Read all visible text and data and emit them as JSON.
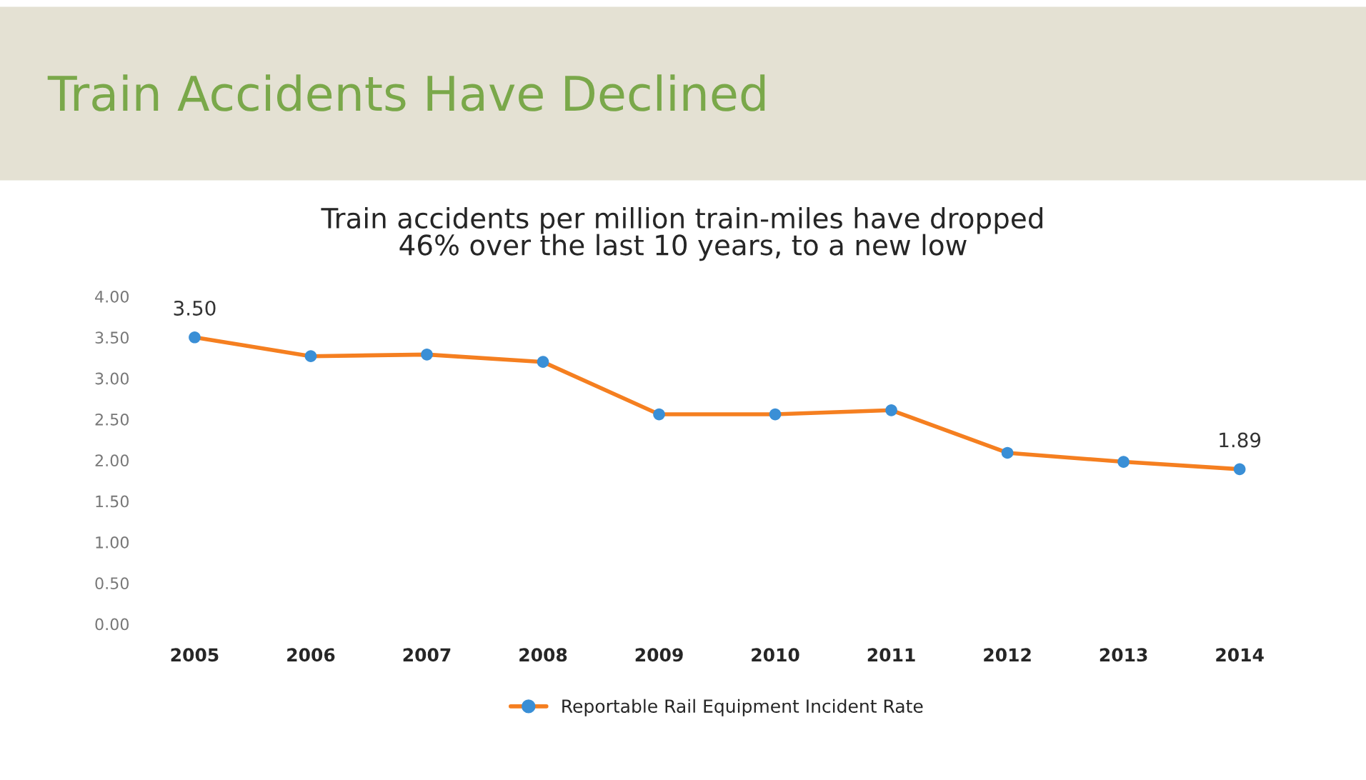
{
  "chart_data": {
    "type": "line",
    "title": "Train Accidents Have Declined",
    "subtitle": "Train accidents per million train-miles have dropped\n46% over the last 10 years, to a new low",
    "categories": [
      "2005",
      "2006",
      "2007",
      "2008",
      "2009",
      "2010",
      "2011",
      "2012",
      "2013",
      "2014"
    ],
    "series": [
      {
        "name": "Reportable Rail Equipment Incident Rate",
        "color": "#f57f20",
        "colors": [
          "#3a8fd6",
          "#3a8fd6",
          "#3a8fd6",
          "#3a8fd6",
          "#3a8fd6",
          "#3a8fd6",
          "#3a8fd6",
          "#3a8fd6",
          "#3a8fd6",
          "#3a8fd6"
        ],
        "values": [
          3.5,
          3.27,
          3.29,
          3.2,
          2.56,
          2.56,
          2.61,
          2.09,
          1.98,
          1.89
        ],
        "value_labels": [
          "3.50",
          null,
          null,
          null,
          null,
          null,
          null,
          null,
          null,
          "1.89"
        ]
      }
    ],
    "ylim": [
      0,
      4
    ],
    "yticks": [
      {
        "value": 0,
        "label": "0.00"
      },
      {
        "value": 0.5,
        "label": "0.50"
      },
      {
        "value": 1,
        "label": "1.00"
      },
      {
        "value": 1.5,
        "label": "1.50"
      },
      {
        "value": 2,
        "label": "2.00"
      },
      {
        "value": 2.5,
        "label": "2.50"
      },
      {
        "value": 3,
        "label": "3.00"
      },
      {
        "value": 3.5,
        "label": "3.50"
      },
      {
        "value": 4,
        "label": "4.00"
      }
    ],
    "grid": false,
    "legend": "bottom",
    "marker": "circle",
    "line_style": "solid"
  }
}
